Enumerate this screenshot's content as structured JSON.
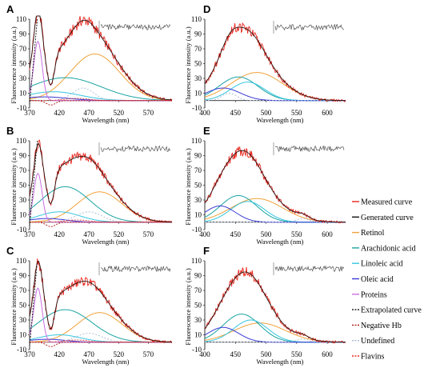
{
  "chart_data": [
    {
      "panel": "A",
      "type": "line",
      "xlabel": "Wavelength (nm)",
      "ylabel": "Fluorescence intensity (a.u.)",
      "xticks": [
        370,
        420,
        470,
        520,
        570
      ],
      "yticks": [
        -10,
        10,
        30,
        50,
        70,
        90,
        110
      ],
      "xlim": [
        370,
        610
      ],
      "ylim": [
        -10,
        110
      ],
      "peaks": {
        "proteins": [
          384,
          80,
          7
        ],
        "retinol": [
          480,
          63,
          42
        ],
        "arachidonic": [
          430,
          31,
          60
        ],
        "linoleic": [
          410,
          12,
          45
        ],
        "oleic": [
          395,
          5,
          40
        ],
        "undefined": [
          460,
          17,
          18
        ]
      },
      "valley": 406
    },
    {
      "panel": "B",
      "type": "line",
      "xlabel": "Wavelength (nm)",
      "ylabel": "Fluorescence intensity (a.u.)",
      "xticks": [
        370,
        420,
        470,
        520,
        570
      ],
      "yticks": [
        -10,
        10,
        30,
        50,
        70,
        90,
        110
      ],
      "xlim": [
        370,
        610
      ],
      "ylim": [
        -10,
        110
      ],
      "peaks": {
        "proteins": [
          384,
          66,
          7
        ],
        "retinol": [
          488,
          41,
          38
        ],
        "arachidonic": [
          430,
          48,
          42
        ],
        "linoleic": [
          420,
          14,
          35
        ],
        "oleic": [
          400,
          5,
          30
        ],
        "undefined": [
          470,
          14,
          22
        ]
      },
      "valley": 406
    },
    {
      "panel": "C",
      "type": "line",
      "xlabel": "Wavelength (nm)",
      "ylabel": "Fluorescence intensity (a.u.)",
      "xticks": [
        370,
        420,
        470,
        520,
        570
      ],
      "yticks": [
        -10,
        10,
        30,
        50,
        70,
        90,
        110
      ],
      "xlim": [
        370,
        610
      ],
      "ylim": [
        -10,
        110
      ],
      "peaks": {
        "proteins": [
          384,
          73,
          7
        ],
        "retinol": [
          488,
          40,
          38
        ],
        "arachidonic": [
          430,
          44,
          45
        ],
        "linoleic": [
          420,
          10,
          35
        ],
        "oleic": [
          400,
          4,
          30
        ],
        "undefined": [
          470,
          12,
          22
        ]
      },
      "valley": 406
    },
    {
      "panel": "D",
      "type": "line",
      "xlabel": "Wavelength (nm)",
      "ylabel": "Fluorescence intensity (a.u.)",
      "xticks": [
        400,
        450,
        500,
        550,
        600
      ],
      "yticks": [
        -10,
        10,
        30,
        50,
        70,
        90,
        110
      ],
      "xlim": [
        400,
        630
      ],
      "ylim": [
        -10,
        110
      ],
      "peaks": {
        "retinol": [
          485,
          38,
          42
        ],
        "arachidonic": [
          455,
          32,
          32
        ],
        "linoleic": [
          470,
          25,
          28
        ],
        "oleic": [
          430,
          17,
          28
        ],
        "undefined": [
          440,
          10,
          12
        ]
      }
    },
    {
      "panel": "E",
      "type": "line",
      "xlabel": "Wavelength (nm)",
      "ylabel": "Fluorescence intensity (a.u.)",
      "xticks": [
        400,
        450,
        500,
        550,
        600
      ],
      "yticks": [
        -10,
        10,
        30,
        50,
        70,
        90,
        110
      ],
      "xlim": [
        400,
        630
      ],
      "ylim": [
        -10,
        110
      ],
      "peaks": {
        "retinol": [
          485,
          32,
          42
        ],
        "arachidonic": [
          455,
          36,
          30
        ],
        "linoleic": [
          470,
          28,
          28
        ],
        "oleic": [
          425,
          22,
          25
        ],
        "undefined": [
          560,
          5,
          10
        ]
      }
    },
    {
      "panel": "F",
      "type": "line",
      "xlabel": "Wavelength (nm)",
      "ylabel": "Fluorescence intensity (a.u.)",
      "xticks": [
        400,
        450,
        500,
        550,
        600
      ],
      "yticks": [
        -10,
        10,
        30,
        50,
        70,
        90,
        110
      ],
      "xlim": [
        400,
        630
      ],
      "ylim": [
        -10,
        110
      ],
      "peaks": {
        "retinol": [
          490,
          26,
          42
        ],
        "arachidonic": [
          460,
          38,
          30
        ],
        "linoleic": [
          475,
          30,
          28
        ],
        "oleic": [
          430,
          20,
          25
        ],
        "undefined": [
          560,
          4,
          10
        ]
      }
    }
  ],
  "legend": [
    {
      "key": "measured",
      "label": "Measured curve",
      "color": "#e8281f",
      "dash": "solid"
    },
    {
      "key": "generated",
      "label": "Generated curve",
      "color": "#111111",
      "dash": "solid"
    },
    {
      "key": "retinol",
      "label": "Retinol",
      "color": "#f0a23a",
      "dash": "solid"
    },
    {
      "key": "arachidonic",
      "label": "Arachidonic acid",
      "color": "#1aa3a3",
      "dash": "solid"
    },
    {
      "key": "linoleic",
      "label": "Linoleic acid",
      "color": "#35c6e0",
      "dash": "solid"
    },
    {
      "key": "oleic",
      "label": "Oleic acid",
      "color": "#3a3ad6",
      "dash": "solid"
    },
    {
      "key": "proteins",
      "label": "Proteins",
      "color": "#c86fe0",
      "dash": "solid"
    },
    {
      "key": "extrapolated",
      "label": "Extrapolated curve",
      "color": "#111111",
      "dash": "dashed"
    },
    {
      "key": "negative_hb",
      "label": "Negative Hb",
      "color": "#b01010",
      "dash": "dashed"
    },
    {
      "key": "undefined",
      "label": "Undefined",
      "color": "#a9b9d6",
      "dash": "dashed"
    },
    {
      "key": "flavins",
      "label": "Flavins",
      "color": "#e8281f",
      "dash": "dashed"
    }
  ]
}
